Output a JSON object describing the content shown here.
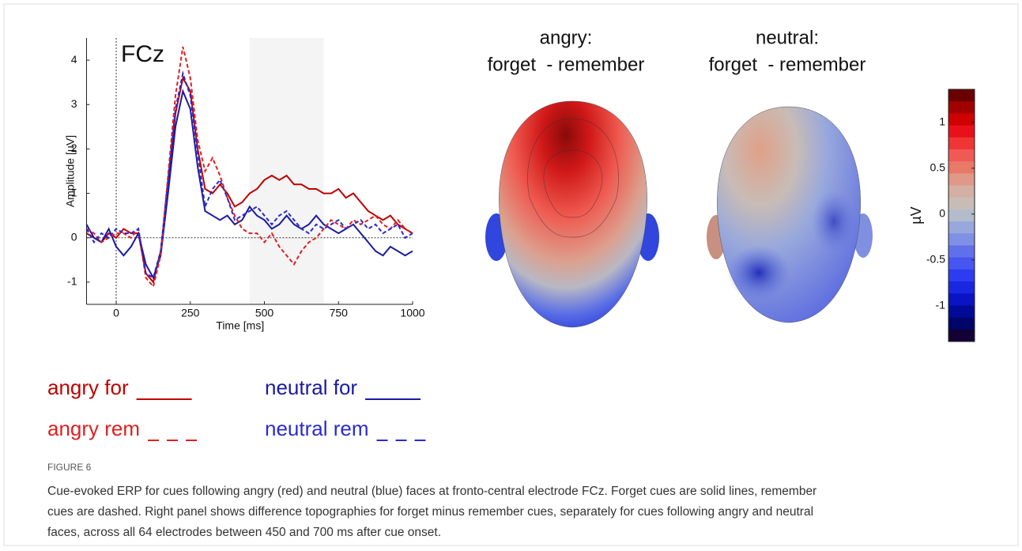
{
  "chart_data": [
    {
      "type": "line",
      "title": "FCz",
      "xlabel": "Time [ms]",
      "ylabel": "Amplitude [µV]",
      "xlim": [
        -100,
        1000
      ],
      "ylim": [
        -1.5,
        4.5
      ],
      "xticks": [
        0,
        250,
        500,
        750,
        1000
      ],
      "yticks": [
        -1,
        0,
        1,
        2,
        3,
        4
      ],
      "shaded_range": [
        450,
        700
      ],
      "shade_color": "#f4f4f4",
      "x": [
        -100,
        -75,
        -50,
        -25,
        0,
        25,
        50,
        75,
        100,
        125,
        150,
        175,
        200,
        225,
        250,
        275,
        300,
        325,
        350,
        375,
        400,
        425,
        450,
        475,
        500,
        525,
        550,
        575,
        600,
        625,
        650,
        675,
        700,
        725,
        750,
        775,
        800,
        825,
        850,
        875,
        900,
        925,
        950,
        975,
        1000
      ],
      "series": [
        {
          "name": "angry for",
          "color": "#c00000",
          "dashed": false,
          "values": [
            0.1,
            0,
            -0.1,
            0.1,
            0,
            0.2,
            0.1,
            0.1,
            -0.8,
            -1.0,
            -0.3,
            1.2,
            2.8,
            3.6,
            3.3,
            2.0,
            1.1,
            1.0,
            1.2,
            1.0,
            0.7,
            0.8,
            1.0,
            1.1,
            1.3,
            1.4,
            1.3,
            1.4,
            1.2,
            1.2,
            1.1,
            1.1,
            1.0,
            1.0,
            1.1,
            0.9,
            1.0,
            0.8,
            0.6,
            0.5,
            0.4,
            0.5,
            0.3,
            0.2,
            0.1
          ]
        },
        {
          "name": "neutral for",
          "color": "#1a1aa0",
          "dashed": false,
          "values": [
            0.3,
            0,
            -0.1,
            0.2,
            -0.2,
            -0.4,
            -0.2,
            0.1,
            -0.6,
            -0.9,
            -0.4,
            1.0,
            2.5,
            3.3,
            2.9,
            1.6,
            0.6,
            0.5,
            0.4,
            0.5,
            0.3,
            0.4,
            0.7,
            0.5,
            0.4,
            0.2,
            0.3,
            0.5,
            0.3,
            0.2,
            0.3,
            0.5,
            0.3,
            0.2,
            0.1,
            0.2,
            0.3,
            0.1,
            -0.1,
            -0.3,
            -0.4,
            -0.2,
            -0.3,
            -0.4,
            -0.3
          ]
        },
        {
          "name": "angry rem",
          "color": "#e02020",
          "dashed": true,
          "values": [
            0.2,
            0.1,
            -0.1,
            0,
            0.1,
            0.1,
            0,
            0.2,
            -0.9,
            -1.1,
            -0.4,
            1.4,
            3.2,
            4.3,
            3.6,
            2.2,
            1.5,
            1.8,
            1.4,
            0.9,
            0.5,
            0.2,
            0.1,
            0.1,
            -0.1,
            0.1,
            -0.2,
            -0.4,
            -0.6,
            -0.3,
            -0.1,
            0,
            0.2,
            0.4,
            0.3,
            0.2,
            0.4,
            0.3,
            0.4,
            0.5,
            0.3,
            0.2,
            0.4,
            0.2,
            0.1
          ]
        },
        {
          "name": "neutral rem",
          "color": "#2a2ad0",
          "dashed": true,
          "values": [
            0.2,
            -0.1,
            0.1,
            0,
            0.2,
            0.1,
            0.1,
            0.2,
            -0.8,
            -0.9,
            -0.3,
            1.3,
            2.9,
            3.7,
            3.2,
            1.9,
            0.7,
            1.1,
            1.3,
            0.9,
            0.4,
            0.5,
            0.6,
            0.7,
            0.5,
            0.3,
            0.5,
            0.6,
            0.4,
            0.2,
            0.1,
            0.3,
            0.2,
            0.3,
            0.4,
            0.2,
            0.3,
            0.4,
            0.2,
            0.3,
            0.1,
            0.2,
            0.3,
            0,
            0.1
          ]
        }
      ]
    },
    {
      "type": "colorbar",
      "label": "µV",
      "lim": [
        -1.39,
        1.36
      ],
      "ticks": [
        -1,
        -0.5,
        0,
        0.5,
        1
      ],
      "colors": [
        "#6b0000",
        "#a00000",
        "#d00000",
        "#e8101a",
        "#f03535",
        "#f05a55",
        "#e87868",
        "#e09888",
        "#d4b0a4",
        "#c8bcb6",
        "#b4bccc",
        "#98a8dc",
        "#8090e4",
        "#6070ea",
        "#4656f0",
        "#2c3cf0",
        "#1828e0",
        "#0a14c4",
        "#040a98",
        "#000668",
        "#140034"
      ]
    }
  ],
  "topographies": [
    {
      "title": [
        "angry:",
        "forget  - remember"
      ]
    },
    {
      "title": [
        "neutral:",
        "forget  - remember"
      ]
    }
  ],
  "caption": {
    "label": "FIGURE 6",
    "lines": [
      "Cue-evoked ERP for cues following angry (red) and neutral (blue) faces at fronto-central electrode FCz. Forget cues are solid lines, remember",
      "cues are dashed. Right panel shows difference topographies for forget minus remember cues, separately for cues following angry and neutral",
      "faces, across all 64 electrodes between 450 and 700 ms after cue onset."
    ]
  }
}
